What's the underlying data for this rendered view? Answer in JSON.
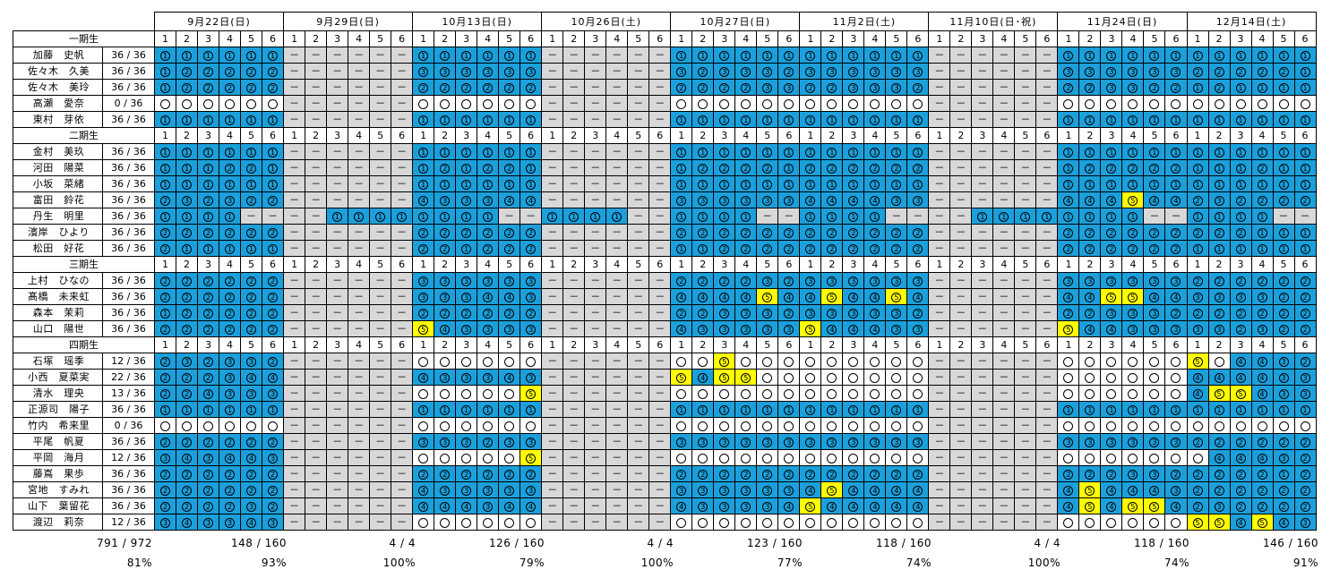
{
  "dates": [
    "9月22日(日)",
    "9月29日(日)",
    "10月13日(日)",
    "10月26日(土)",
    "10月27日(日)",
    "11月2日(土)",
    "11月10日(日･祝)",
    "11月24日(日)",
    "12月14日(土)"
  ],
  "sessions": [
    "1",
    "2",
    "3",
    "4",
    "5",
    "6"
  ],
  "legend": {
    "empty": "○",
    "none": "－"
  },
  "colors": {
    "blue": "#1ba0dc",
    "yellow": "#ffff00",
    "gray": "#d8d8d8"
  },
  "groups": [
    {
      "name": "一期生",
      "members": [
        {
          "name": "加藤　史帆",
          "ratio": "36 / 36",
          "slots": [
            "b1 b1 b1 b1 b1 b1",
            "g- g- g- g- g- g-",
            "b1 b1 b1 b1 b1 b1",
            "g- g- g- g- g- g-",
            "b1 b1 b1 b1 b1 b1",
            "b1 b1 b1 b1 b1 b1",
            "g- g- g- g- g- g-",
            "b1 b1 b1 b1 b1 b1",
            "b1 b1 b1 b1 b1 b1"
          ]
        },
        {
          "name": "佐々木　久美",
          "ratio": "36 / 36",
          "slots": [
            "b1 b2 b2 b2 b2 b2",
            "g- g- g- g- g- g-",
            "b3 b3 b3 b3 b3 b3",
            "g- g- g- g- g- g-",
            "b3 b2 b3 b3 b3 b2",
            "b3 b3 b3 b3 b3 b3",
            "g- g- g- g- g- g-",
            "b3 b3 b3 b3 b3 b3",
            "b2 b2 b2 b2 b2 b1"
          ]
        },
        {
          "name": "佐々木　美玲",
          "ratio": "36 / 36",
          "slots": [
            "b1 b2 b2 b2 b2 b2",
            "g- g- g- g- g- g-",
            "b2 b2 b2 b2 b2 b2",
            "g- g- g- g- g- g-",
            "b2 b2 b2 b2 b3 b3",
            "b2 b2 b3 b3 b3 b2",
            "g- g- g- g- g- g-",
            "b2 b2 b3 b3 b2 b2",
            "b1 b2 b1 b1 b1 b1"
          ]
        },
        {
          "name": "高瀬　愛奈",
          "ratio": "0 / 36",
          "slots": [
            "w0 w0 w0 w0 w0 w0",
            "g- g- g- g- g- g-",
            "w0 w0 w0 w0 w0 w0",
            "g- g- g- g- g- g-",
            "w0 w0 w0 w0 w0 w0",
            "w0 w0 w0 w0 w0 w0",
            "g- g- g- g- g- g-",
            "w0 w0 w0 w0 w0 w0",
            "w0 w0 w0 w0 w0 w0"
          ]
        },
        {
          "name": "東村　芽依",
          "ratio": "36 / 36",
          "slots": [
            "b1 b1 b1 b1 b1 b1",
            "g- g- g- g- g- g-",
            "b1 b1 b1 b1 b1 b1",
            "g- g- g- g- g- g-",
            "b1 b1 b1 b1 b1 b1",
            "b1 b1 b1 b1 b1 b1",
            "g- g- g- g- g- g-",
            "b1 b1 b1 b1 b1 b1",
            "b1 b1 b1 b1 b1 b1"
          ]
        }
      ]
    },
    {
      "name": "二期生",
      "members": [
        {
          "name": "金村　美玖",
          "ratio": "36 / 36",
          "slots": [
            "b1 b1 b1 b1 b1 b1",
            "g- g- g- g- g- g-",
            "b1 b1 b1 b1 b1 b1",
            "g- g- g- g- g- g-",
            "b1 b1 b1 b1 b1 b1",
            "b1 b1 b1 b1 b1 b1",
            "g- g- g- g- g- g-",
            "b1 b1 b1 b1 b1 b1",
            "b1 b1 b1 b1 b1 b1"
          ]
        },
        {
          "name": "河田　陽菜",
          "ratio": "36 / 36",
          "slots": [
            "b1 b1 b1 b2 b2 b1",
            "g- g- g- g- g- g-",
            "b1 b2 b1 b2 b2 b1",
            "g- g- g- g- g- g-",
            "b1 b2 b2 b2 b2 b1",
            "b2 b2 b2 b2 b2 b2",
            "g- g- g- g- g- g-",
            "b1 b2 b2 b2 b2 b2",
            "b1 b1 b1 b2 b1 b1"
          ]
        },
        {
          "name": "小坂　菜緒",
          "ratio": "36 / 36",
          "slots": [
            "b1 b1 b1 b1 b1 b1",
            "g- g- g- g- g- g-",
            "b1 b1 b1 b1 b1 b1",
            "g- g- g- g- g- g-",
            "b1 b1 b1 b1 b1 b1",
            "b1 b1 b1 b1 b1 b1",
            "g- g- g- g- g- g-",
            "b1 b1 b1 b1 b1 b1",
            "b1 b1 b1 b1 b1 b1"
          ]
        },
        {
          "name": "富田　鈴花",
          "ratio": "36 / 36",
          "slots": [
            "b2 b3 b2 b3 b2 b2",
            "g- g- g- g- g- g-",
            "b4 b3 b3 b3 b4 b4",
            "g- g- g- g- g- g-",
            "b3 b3 b3 b3 b3 b3",
            "b4 b4 b4 b4 b3 b3",
            "g- g- g- g- g- g-",
            "b4 b4 b4 y5 b4 b4",
            "b2 b3 b2 b2 b2 b2"
          ]
        },
        {
          "name": "丹生　明里",
          "ratio": "36 / 36",
          "slots": [
            "b1 b1 b1 b1 g- g-",
            "g- g- b1 b1 b1 b1",
            "b1 b1 b1 b1 g- g-",
            "b1 b1 b1 b1 g- g-",
            "b1 b1 b1 b1 g- g-",
            "b1 b1 b1 b1 g- g-",
            "g- g- b1 b1 b1 b1",
            "b1 b1 b1 b1 g- g-",
            "b1 b1 b1 b1 g- g-"
          ]
        },
        {
          "name": "濱岸　ひより",
          "ratio": "36 / 36",
          "slots": [
            "b2 b2 b2 b2 b2 b2",
            "g- g- g- g- g- g-",
            "b2 b2 b2 b2 b2 b2",
            "g- g- g- g- g- g-",
            "b2 b2 b2 b2 b2 b2",
            "b2 b2 b2 b2 b2 b2",
            "g- g- g- g- g- g-",
            "b2 b2 b2 b2 b2 b2",
            "b2 b2 b2 b1 b1 b1"
          ]
        },
        {
          "name": "松田　好花",
          "ratio": "36 / 36",
          "slots": [
            "b2 b1 b1 b1 b1 b1",
            "g- g- g- g- g- g-",
            "b2 b2 b1 b2 b2 b2",
            "g- g- g- g- g- g-",
            "b1 b1 b2 b2 b2 b2",
            "b2 b2 b2 b2 b2 b2",
            "g- g- g- g- g- g-",
            "b2 b2 b2 b2 b2 b2",
            "b1 b1 b1 b1 b1 b1"
          ]
        }
      ]
    },
    {
      "name": "三期生",
      "members": [
        {
          "name": "上村　ひなの",
          "ratio": "36 / 36",
          "slots": [
            "b2 b2 b2 b2 b2 b2",
            "g- g- g- g- g- g-",
            "b3 b3 b3 b3 b3 b3",
            "g- g- g- g- g- g-",
            "b2 b2 b2 b2 b3 b2",
            "b3 b3 b3 b3 b3 b3",
            "g- g- g- g- g- g-",
            "b3 b3 b3 b3 b3 b3",
            "b2 b2 b2 b2 b2 b2"
          ]
        },
        {
          "name": "髙橋　未来虹",
          "ratio": "36 / 36",
          "slots": [
            "b2 b2 b2 b2 b2 b2",
            "g- g- g- g- g- g-",
            "b3 b3 b3 b4 b4 b3",
            "g- g- g- g- g- g-",
            "b4 b4 b4 b4 y5 b4",
            "b4 y5 b4 b4 y5 b4",
            "g- g- g- g- g- g-",
            "b4 b4 y5 y5 b4 b4",
            "b3 b3 b3 b3 b2 b2"
          ]
        },
        {
          "name": "森本　茉莉",
          "ratio": "36 / 36",
          "slots": [
            "b1 b2 b2 b2 b2 b2",
            "g- g- g- g- g- g-",
            "b2 b2 b2 b2 b2 b2",
            "g- g- g- g- g- g-",
            "b2 b2 b3 b3 b3 b2",
            "b3 b3 b3 b3 b3 b2",
            "g- g- g- g- g- g-",
            "b2 b2 b3 b3 b3 b2",
            "b2 b2 b2 b2 b2 b2"
          ]
        },
        {
          "name": "山口　陽世",
          "ratio": "36 / 36",
          "slots": [
            "b2 b2 b2 b2 b2 b2",
            "g- g- g- g- g- g-",
            "y5 b4 b3 b3 b3 b3",
            "g- g- g- g- g- g-",
            "b4 b3 b3 b3 b3 b3",
            "y5 b4 b4 b4 b3 b3",
            "g- g- g- g- g- g-",
            "y5 b4 b4 b3 b3 b3",
            "b3 b3 b2 b3 b2 b2"
          ]
        }
      ]
    },
    {
      "name": "四期生",
      "members": [
        {
          "name": "石塚　瑶季",
          "ratio": "12 / 36",
          "slots": [
            "b2 b3 b2 b3 b3 b2",
            "g- g- g- g- g- g-",
            "w0 w0 w0 w0 w0 w0",
            "g- g- g- g- g- g-",
            "w0 w0 y5 w0 w0 w0",
            "w0 w0 w0 w0 w0 w0",
            "g- g- g- g- g- g-",
            "w0 w0 w0 w0 w0 w0",
            "y5 w0 b4 b4 b3 b2"
          ]
        },
        {
          "name": "小西　夏菜実",
          "ratio": "22 / 36",
          "slots": [
            "b2 b2 b2 b3 b4 b4",
            "g- g- g- g- g- g-",
            "b4 b3 b3 b3 b4 b3",
            "g- g- g- g- g- g-",
            "y5 b4 y5 y5 w0 w0",
            "w0 w0 w0 w0 w0 w0",
            "g- g- g- g- g- g-",
            "w0 w0 w0 w0 w0 w0",
            "b4 b4 b4 b4 b3 b3"
          ]
        },
        {
          "name": "清水　理央",
          "ratio": "13 / 36",
          "slots": [
            "b2 b2 b4 b3 b3 b3",
            "g- g- g- g- g- g-",
            "w0 w0 w0 w0 w0 y5",
            "g- g- g- g- g- g-",
            "w0 w0 w0 w0 w0 w0",
            "w0 w0 w0 w0 w0 w0",
            "g- g- g- g- g- g-",
            "w0 w0 w0 w0 w0 w0",
            "b4 y5 y5 b4 b3 b3"
          ]
        },
        {
          "name": "正源司　陽子",
          "ratio": "36 / 36",
          "slots": [
            "b1 b1 b1 b1 b1 b1",
            "g- g- g- g- g- g-",
            "b1 b1 b1 b1 b1 b1",
            "g- g- g- g- g- g-",
            "b1 b1 b1 b1 b1 b1",
            "b1 b1 b1 b1 b1 b1",
            "g- g- g- g- g- g-",
            "b1 b1 b1 b1 b1 b1",
            "b1 b1 b1 b1 b1 b1"
          ]
        },
        {
          "name": "竹内　希来里",
          "ratio": "0 / 36",
          "slots": [
            "w0 w0 w0 w0 w0 w0",
            "g- g- g- g- g- g-",
            "w0 w0 w0 w0 w0 w0",
            "g- g- g- g- g- g-",
            "w0 w0 w0 w0 w0 w0",
            "w0 w0 w0 w0 w0 w0",
            "g- g- g- g- g- g-",
            "w0 w0 w0 w0 w0 w0",
            "w0 w0 w0 w0 w0 w0"
          ]
        },
        {
          "name": "平尾　帆夏",
          "ratio": "36 / 36",
          "slots": [
            "b2 b2 b2 b2 b2 b2",
            "g- g- g- g- g- g-",
            "b3 b3 b3 b2 b3 b3",
            "g- g- g- g- g- g-",
            "b3 b3 b3 b3 b3 b3",
            "b3 b3 b3 b3 b3 b3",
            "g- g- g- g- g- g-",
            "b3 b3 b3 b3 b3 b3",
            "b2 b2 b2 b2 b2 b2"
          ]
        },
        {
          "name": "平岡　海月",
          "ratio": "12 / 36",
          "slots": [
            "b3 b4 b3 b4 b4 b3",
            "g- g- g- g- g- g-",
            "w0 w0 w0 w0 w0 y5",
            "g- g- g- g- g- g-",
            "w0 w0 w0 w0 w0 w0",
            "w0 w0 w0 w0 w0 w0",
            "g- g- g- g- g- g-",
            "w0 w0 w0 w0 w0 w0",
            "w0 b4 b4 b4 b3 b2"
          ]
        },
        {
          "name": "藤嶌　果歩",
          "ratio": "36 / 36",
          "slots": [
            "b2 b2 b2 b2 b2 b2",
            "g- g- g- g- g- g-",
            "b2 b2 b2 b2 b2 b2",
            "g- g- g- g- g- g-",
            "b2 b2 b2 b2 b2 b2",
            "b2 b2 b2 b2 b2 b2",
            "g- g- g- g- g- g-",
            "b2 b2 b2 b3 b3 b2",
            "b2 b2 b2 b2 b1 b2"
          ]
        },
        {
          "name": "宮地　すみれ",
          "ratio": "36 / 36",
          "slots": [
            "b2 b2 b2 b2 b2 b2",
            "g- g- g- g- g- g-",
            "b4 b3 b3 b3 b3 b3",
            "g- g- g- g- g- g-",
            "b3 b3 b3 b3 b3 b3",
            "b4 y5 b4 b4 b4 b4",
            "g- g- g- g- g- g-",
            "b4 y5 b4 b4 b4 b3",
            "b2 b2 b2 b2 b2 b2"
          ]
        },
        {
          "name": "山下　葉留花",
          "ratio": "36 / 36",
          "slots": [
            "b2 b2 b2 b2 b3 b2",
            "g- g- g- g- g- g-",
            "b4 b4 b4 b3 b4 b4",
            "g- g- g- g- g- g-",
            "b4 b3 b3 b3 b3 b4",
            "y5 b4 b4 b4 b4 b4",
            "g- g- g- g- g- g-",
            "b4 y5 b4 y5 y5 b4",
            "b2 b3 b2 b2 b2 b2"
          ]
        },
        {
          "name": "渡辺　莉奈",
          "ratio": "12 / 36",
          "slots": [
            "b3 b4 b3 b3 b4 b3",
            "g- g- g- g- g- g-",
            "w0 w0 w0 w0 w0 w0",
            "g- g- g- g- g- g-",
            "w0 w0 w0 w0 w0 w0",
            "w0 w0 w0 w0 w0 w0",
            "g- g- g- g- g- g-",
            "w0 w0 w0 w0 w0 w0",
            "y5 y5 b4 y5 b4 b3"
          ]
        }
      ]
    }
  ],
  "totals": [
    {
      "count": "791 / 972",
      "pct": "81%"
    },
    {
      "count": "148 / 160",
      "pct": "93%"
    },
    {
      "count": "4 / 4",
      "pct": "100%"
    },
    {
      "count": "126 / 160",
      "pct": "79%"
    },
    {
      "count": "4 / 4",
      "pct": "100%"
    },
    {
      "count": "123 / 160",
      "pct": "77%"
    },
    {
      "count": "118 / 160",
      "pct": "74%"
    },
    {
      "count": "4 / 4",
      "pct": "100%"
    },
    {
      "count": "118 / 160",
      "pct": "74%"
    },
    {
      "count": "146 / 160",
      "pct": "91%"
    }
  ]
}
